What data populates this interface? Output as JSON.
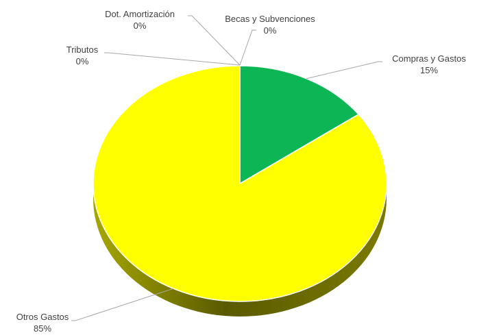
{
  "chart_data": {
    "type": "pie",
    "style": "3d",
    "slices": [
      {
        "label": "Compras y Gastos",
        "percent_label": "15%",
        "value": 15,
        "color": "#0cb654"
      },
      {
        "label": "Otros Gastos",
        "percent_label": "85%",
        "value": 85,
        "color": "#ffff00"
      },
      {
        "label": "Tributos",
        "percent_label": "0%",
        "value": 0,
        "color": "#c0c0c0"
      },
      {
        "label": "Dot. Amortización",
        "percent_label": "0%",
        "value": 0,
        "color": "#c0c0c0"
      },
      {
        "label": "Becas y Subvenciones",
        "percent_label": "0%",
        "value": 0,
        "color": "#c0c0c0"
      }
    ],
    "colors": {
      "leader_line": "#a6a6a6",
      "label_text": "#404040",
      "slice_border": "#ffffff"
    }
  }
}
